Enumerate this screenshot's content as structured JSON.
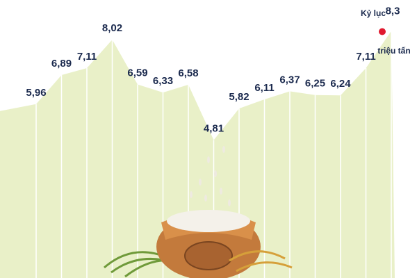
{
  "chart_data": {
    "type": "area",
    "values": [
      5.96,
      6.89,
      7.11,
      8.02,
      6.59,
      6.33,
      6.58,
      4.81,
      5.82,
      6.11,
      6.37,
      6.25,
      6.24,
      7.11,
      8.3
    ],
    "value_labels": [
      "5,96",
      "6,89",
      "7,11",
      "8,02",
      "6,59",
      "6,33",
      "6,58",
      "4,81",
      "5,82",
      "6,11",
      "6,37",
      "6,25",
      "6,24",
      "7,11",
      "8,3"
    ],
    "color": "#e9f0c8",
    "highlight_color": "#e0192f",
    "annotation_top": "Kỷ lục",
    "annotation_bottom": "triệu tấn"
  }
}
